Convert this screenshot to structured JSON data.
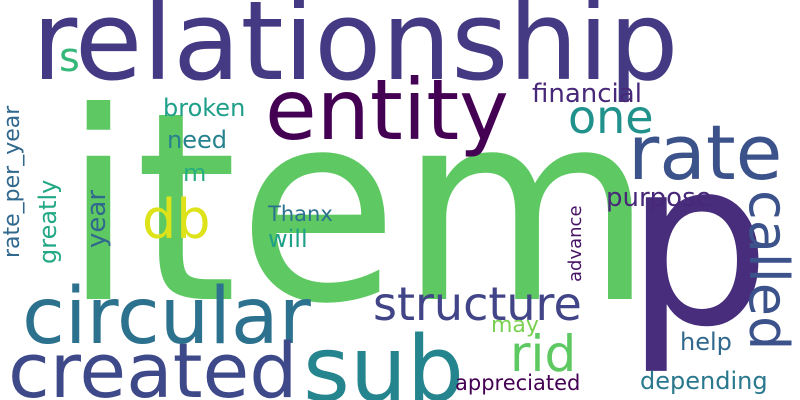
{
  "words": [
    {
      "text": "item",
      "color": "#5ec962"
    },
    {
      "text": "relationship",
      "color": "#443983"
    },
    {
      "text": "p",
      "color": "#472d7b"
    },
    {
      "text": "entity",
      "color": "#440154"
    },
    {
      "text": "rate",
      "color": "#3b528b"
    },
    {
      "text": "circular",
      "color": "#2c728e"
    },
    {
      "text": "created",
      "color": "#3e4989"
    },
    {
      "text": "sub",
      "color": "#25858e"
    },
    {
      "text": "structure",
      "color": "#414487"
    },
    {
      "text": "one",
      "color": "#21918c"
    },
    {
      "text": "called",
      "color": "#3b528b"
    },
    {
      "text": "rid",
      "color": "#5ec962"
    },
    {
      "text": "db",
      "color": "#dde318"
    },
    {
      "text": "financial",
      "color": "#482878"
    },
    {
      "text": "broken",
      "color": "#1f9e89"
    },
    {
      "text": "need",
      "color": "#26828e"
    },
    {
      "text": "purpose",
      "color": "#482878"
    },
    {
      "text": "s",
      "color": "#35b779"
    },
    {
      "text": "rate_per_year",
      "color": "#31688e"
    },
    {
      "text": "greatly",
      "color": "#22a884"
    },
    {
      "text": "year",
      "color": "#31688e"
    },
    {
      "text": "m",
      "color": "#29af7f"
    },
    {
      "text": "Thanx",
      "color": "#2c728e"
    },
    {
      "text": "will",
      "color": "#1fa187"
    },
    {
      "text": "advance",
      "color": "#471365"
    },
    {
      "text": "may",
      "color": "#7ad151"
    },
    {
      "text": "help",
      "color": "#31688e"
    },
    {
      "text": "depending",
      "color": "#2a788e"
    },
    {
      "text": "appreciated",
      "color": "#440154"
    }
  ]
}
